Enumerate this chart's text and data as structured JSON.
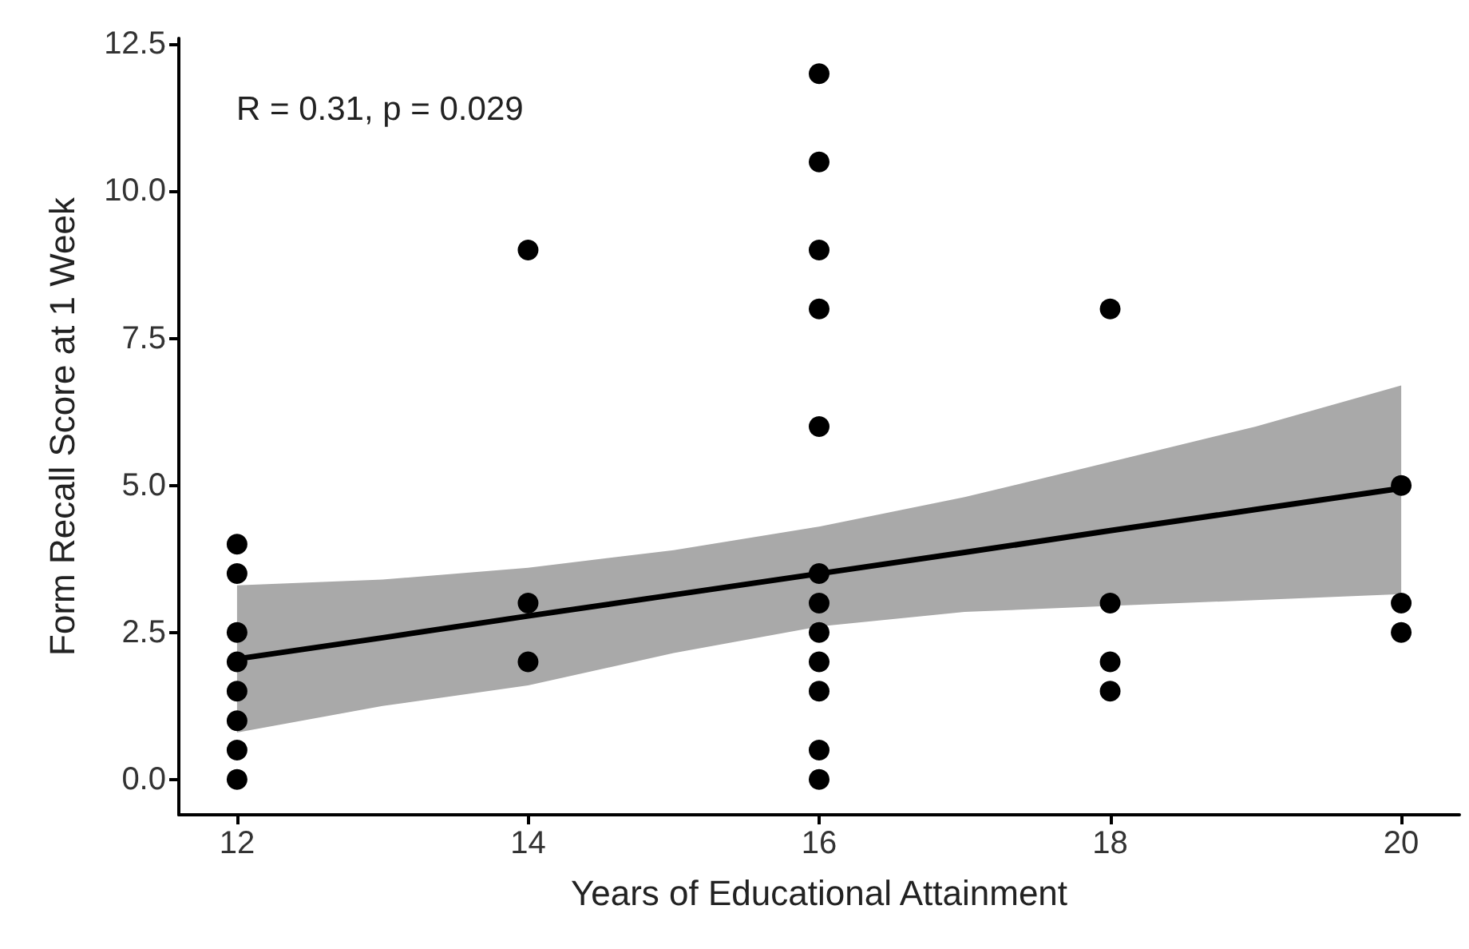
{
  "chart_data": {
    "type": "scatter",
    "xlabel": "Years of Educational Attainment",
    "ylabel": "Form Recall Score at 1 Week",
    "annotations": [
      "R = 0.31, p = 0.029"
    ],
    "xlim": [
      11.6,
      20.4
    ],
    "xticks": [
      12,
      14,
      16,
      18,
      20
    ],
    "ylim": [
      -0.6,
      12.6
    ],
    "yticks": [
      {
        "value": 0,
        "label": "0.0"
      },
      {
        "value": 2.5,
        "label": "2.5"
      },
      {
        "value": 5,
        "label": "5.0"
      },
      {
        "value": 7.5,
        "label": "7.5"
      },
      {
        "value": 10,
        "label": "10.0"
      },
      {
        "value": 12.5,
        "label": "12.5"
      }
    ],
    "grid": false,
    "marker": "circle",
    "series": [
      {
        "color": "#000000",
        "x": [
          12,
          12,
          12,
          12,
          12,
          12,
          12,
          12,
          14,
          14,
          14,
          16,
          16,
          16,
          16,
          16,
          16,
          16,
          16,
          16,
          16,
          16,
          16,
          18,
          18,
          18,
          18,
          20,
          20,
          20
        ],
        "values": [
          4,
          3.5,
          2.5,
          2,
          1.5,
          1,
          0.5,
          0,
          9,
          3,
          2,
          12,
          10.5,
          9,
          8,
          6,
          3.5,
          3,
          2.5,
          2,
          1.5,
          0.5,
          0,
          8,
          3,
          2,
          1.5,
          5,
          3,
          2.5
        ]
      },
      {
        "type": "line",
        "color": "#000000",
        "marker": "none",
        "line_style": "solid",
        "x": [
          12,
          13,
          14,
          15,
          16,
          17,
          18,
          19,
          20
        ],
        "values": [
          2.05,
          2.41,
          2.78,
          3.14,
          3.5,
          3.86,
          4.23,
          4.59,
          4.95
        ],
        "lower": [
          0.8,
          1.25,
          1.6,
          2.15,
          2.6,
          2.85,
          2.95,
          3.05,
          3.15
        ],
        "upper": [
          3.3,
          3.4,
          3.6,
          3.9,
          4.3,
          4.8,
          5.4,
          6.0,
          6.7
        ]
      }
    ]
  }
}
